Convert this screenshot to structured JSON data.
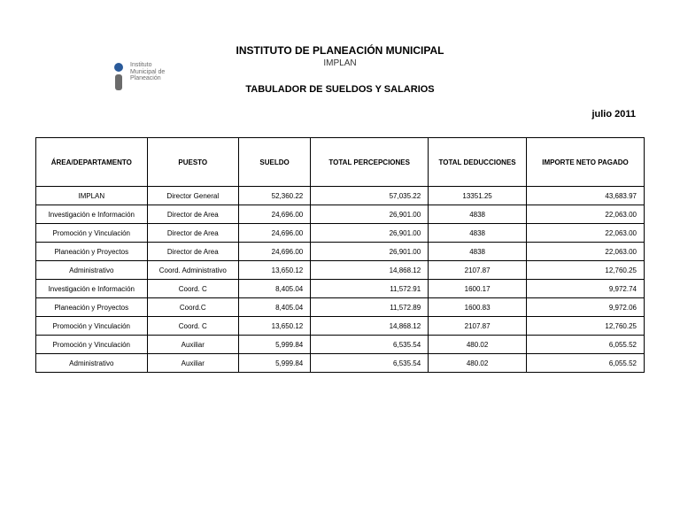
{
  "header": {
    "title": "INSTITUTO DE PLANEACIÓN MUNICIPAL",
    "subtitle": "IMPLAN",
    "tabulator": "TABULADOR DE SUELDOS Y SALARIOS",
    "date": "julio 2011",
    "logo_line1": "Instituto",
    "logo_line2": "Municipal de",
    "logo_line3": "Planeación"
  },
  "columns": [
    "ÁREA/DEPARTAMENTO",
    "PUESTO",
    "SUELDO",
    "TOTAL PERCEPCIONES",
    "TOTAL DEDUCCIONES",
    "IMPORTE NETO PAGADO"
  ],
  "rows": [
    {
      "area": "IMPLAN",
      "puesto": "Director General",
      "sueldo": "52,360.22",
      "percep": "57,035.22",
      "deduc": "13351.25",
      "neto": "43,683.97"
    },
    {
      "area": "Investigación e Información",
      "puesto": "Director de Area",
      "sueldo": "24,696.00",
      "percep": "26,901.00",
      "deduc": "4838",
      "neto": "22,063.00"
    },
    {
      "area": "Promoción y Vinculación",
      "puesto": "Director de Area",
      "sueldo": "24,696.00",
      "percep": "26,901.00",
      "deduc": "4838",
      "neto": "22,063.00"
    },
    {
      "area": "Planeación y Proyectos",
      "puesto": "Director de Area",
      "sueldo": "24,696.00",
      "percep": "26,901.00",
      "deduc": "4838",
      "neto": "22,063.00"
    },
    {
      "area": "Administrativo",
      "puesto": "Coord. Administrativo",
      "sueldo": "13,650.12",
      "percep": "14,868.12",
      "deduc": "2107.87",
      "neto": "12,760.25"
    },
    {
      "area": "Investigación e Información",
      "puesto": "Coord. C",
      "sueldo": "8,405.04",
      "percep": "11,572.91",
      "deduc": "1600.17",
      "neto": "9,972.74"
    },
    {
      "area": "Planeación y Proyectos",
      "puesto": "Coord.C",
      "sueldo": "8,405.04",
      "percep": "11,572.89",
      "deduc": "1600.83",
      "neto": "9,972.06"
    },
    {
      "area": "Promoción y Vinculación",
      "puesto": "Coord. C",
      "sueldo": "13,650.12",
      "percep": "14,868.12",
      "deduc": "2107.87",
      "neto": "12,760.25"
    },
    {
      "area": "Promoción y Vinculación",
      "puesto": "Auxiliar",
      "sueldo": "5,999.84",
      "percep": "6,535.54",
      "deduc": "480.02",
      "neto": "6,055.52"
    },
    {
      "area": "Administrativo",
      "puesto": "Auxiliar",
      "sueldo": "5,999.84",
      "percep": "6,535.54",
      "deduc": "480.02",
      "neto": "6,055.52"
    }
  ]
}
